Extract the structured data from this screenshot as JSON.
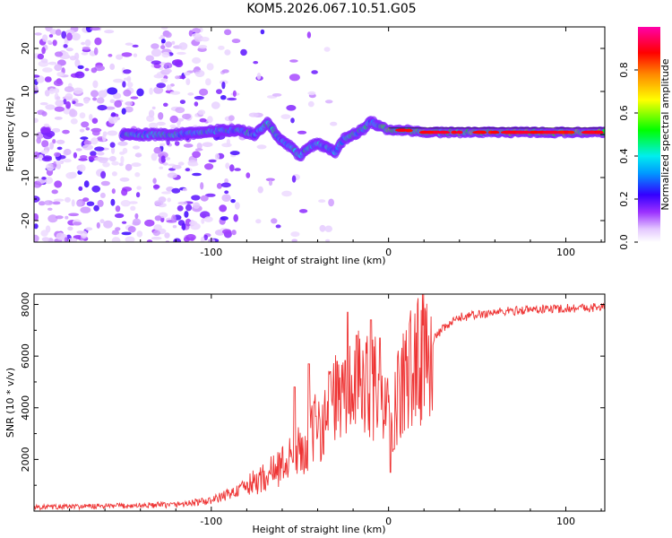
{
  "title": "KOM5.2026.067.10.51.G05",
  "chart_data": [
    {
      "type": "heatmap",
      "name": "spectrogram",
      "xlabel": "Height of straight line (km)",
      "ylabel": "Frequency (Hz)",
      "xlim": [
        -200,
        122
      ],
      "ylim": [
        -25,
        25
      ],
      "xticks": [
        -100,
        0,
        100
      ],
      "xtick_labels": [
        "-100",
        "0",
        "100"
      ],
      "yticks": [
        -20,
        -10,
        0,
        10,
        20
      ],
      "ytick_labels": [
        "-20",
        "-10",
        "0",
        "10",
        "20"
      ],
      "colorbar": {
        "label": "Normalized spectral amplitude",
        "range": [
          0,
          1
        ],
        "ticks": [
          0.0,
          0.2,
          0.4,
          0.6,
          0.8
        ],
        "tick_labels": [
          "0.0",
          "0.2",
          "0.4",
          "0.6",
          "0.8"
        ]
      },
      "ridge": {
        "x": [
          -150,
          -135,
          -120,
          -105,
          -95,
          -85,
          -75,
          -68,
          -62,
          -55,
          -50,
          -45,
          -40,
          -35,
          -30,
          -25,
          -20,
          -15,
          -10,
          -5,
          0,
          10,
          20,
          40,
          60,
          80,
          100,
          122
        ],
        "y": [
          0,
          0,
          0,
          0.5,
          1,
          1,
          0,
          3,
          -1,
          -3,
          -5,
          -3,
          -2,
          -3,
          -4,
          -1,
          0,
          1,
          3,
          2,
          1,
          1,
          0.5,
          0.5,
          0.5,
          0.5,
          0.5,
          0.5
        ]
      }
    },
    {
      "type": "line",
      "name": "snr",
      "xlabel": "Height of straight line (km)",
      "ylabel": "SNR (10 * v/v)",
      "xlim": [
        -200,
        122
      ],
      "ylim": [
        0,
        8400
      ],
      "xticks": [
        -100,
        0,
        100
      ],
      "xtick_labels": [
        "-100",
        "0",
        "100"
      ],
      "yticks": [
        2000,
        4000,
        6000,
        8000
      ],
      "ytick_labels": [
        "2000",
        "4000",
        "6000",
        "8000"
      ],
      "series_color": "#ee3333",
      "anchors": {
        "x": [
          -200,
          -150,
          -120,
          -100,
          -85,
          -70,
          -60,
          -50,
          -40,
          -30,
          -20,
          -10,
          0,
          10,
          20,
          30,
          40,
          60,
          80,
          100,
          122
        ],
        "y": [
          150,
          200,
          250,
          400,
          800,
          1300,
          1800,
          2300,
          3300,
          4200,
          4700,
          5100,
          3500,
          5200,
          6200,
          7000,
          7500,
          7700,
          7800,
          7850,
          7900
        ]
      },
      "spikes": [
        {
          "x": -53,
          "y": 4800
        },
        {
          "x": -45,
          "y": 5700
        },
        {
          "x": -33,
          "y": 5400
        },
        {
          "x": -29,
          "y": 5800
        },
        {
          "x": -23,
          "y": 7700
        },
        {
          "x": -18,
          "y": 6800
        },
        {
          "x": -10,
          "y": 7400
        },
        {
          "x": -5,
          "y": 6700
        },
        {
          "x": 1,
          "y": 1500
        },
        {
          "x": 3,
          "y": 2400
        }
      ]
    }
  ]
}
